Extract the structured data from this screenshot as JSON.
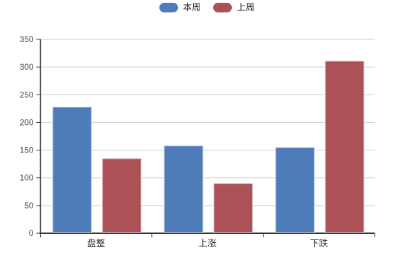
{
  "chart_data": {
    "type": "bar",
    "title": "",
    "categories": [
      "盘整",
      "上涨",
      "下跌"
    ],
    "series": [
      {
        "name": "本周",
        "color": "#4d7cb8",
        "values": [
          228,
          158,
          155
        ]
      },
      {
        "name": "上周",
        "color": "#ac5257",
        "values": [
          135,
          90,
          311
        ]
      }
    ],
    "ylim": [
      0,
      350
    ],
    "ytick_interval": 50,
    "yticks": [
      0,
      50,
      100,
      150,
      200,
      250,
      300,
      350
    ],
    "grid": true,
    "legend_position": "top-center",
    "colors": {
      "axis": "#333333",
      "grid": "#cccccc",
      "tick_label": "#404040",
      "bar_edge": "rgba(255,255,255,0.45)",
      "background": "#ffffff"
    }
  }
}
